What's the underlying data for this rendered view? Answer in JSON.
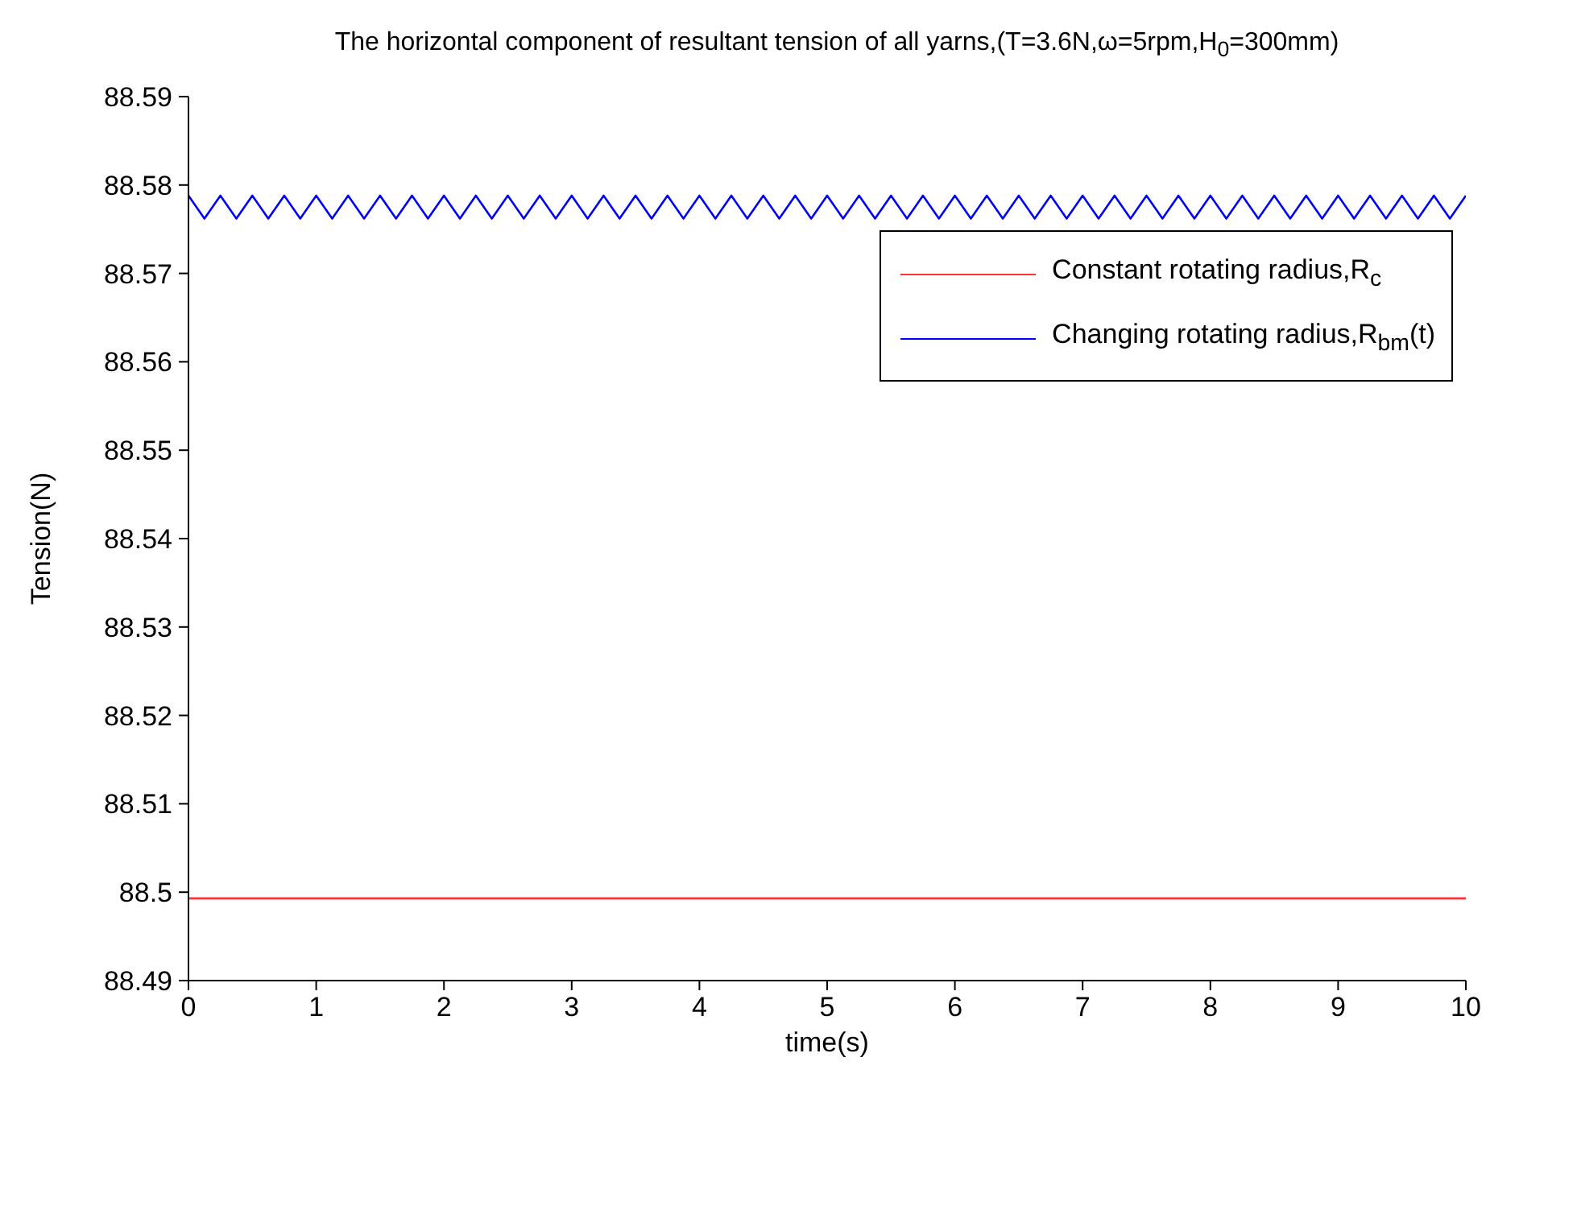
{
  "chart_data": {
    "type": "line",
    "title": "The horizontal component of resultant tension of all yarns,(T=3.6N,ω=5rpm,H$_{0}$=300mm)",
    "xlabel": "time(s)",
    "ylabel": "Tension(N)",
    "xlim": [
      0,
      10
    ],
    "xticks": [
      0,
      1,
      2,
      3,
      4,
      5,
      6,
      7,
      8,
      9,
      10
    ],
    "ylim": [
      88.49,
      88.59
    ],
    "yticks": [
      88.49,
      88.5,
      88.51,
      88.52,
      88.53,
      88.54,
      88.55,
      88.56,
      88.57,
      88.58,
      88.59
    ],
    "grid": false,
    "legend": "top right",
    "marker": "none",
    "line_style": "solid",
    "series": [
      {
        "name": "Constant rotating radius,R$_{c}$",
        "color": "#ff3333",
        "x": [
          0,
          10
        ],
        "values": [
          88.4993,
          88.4993
        ]
      },
      {
        "name": "Changing rotating radius,R$_{bm}$(t)",
        "color": "#0000ff",
        "x": [
          0,
          0.125,
          0.25,
          0.375,
          0.5,
          0.625,
          0.75,
          0.875,
          1,
          1.125,
          1.25,
          1.375,
          1.5,
          1.625,
          1.75,
          1.875,
          2,
          2.125,
          2.25,
          2.375,
          2.5,
          2.625,
          2.75,
          2.875,
          3,
          3.125,
          3.25,
          3.375,
          3.5,
          3.625,
          3.75,
          3.875,
          4,
          4.125,
          4.25,
          4.375,
          4.5,
          4.625,
          4.75,
          4.875,
          5,
          5.125,
          5.25,
          5.375,
          5.5,
          5.625,
          5.75,
          5.875,
          6,
          6.125,
          6.25,
          6.375,
          6.5,
          6.625,
          6.75,
          6.875,
          7,
          7.125,
          7.25,
          7.375,
          7.5,
          7.625,
          7.75,
          7.875,
          8,
          8.125,
          8.25,
          8.375,
          8.5,
          8.625,
          8.75,
          8.875,
          9,
          9.125,
          9.25,
          9.375,
          9.5,
          9.625,
          9.75,
          9.875,
          10
        ],
        "values": [
          88.5788,
          88.5762,
          88.5788,
          88.5762,
          88.5788,
          88.5762,
          88.5788,
          88.5762,
          88.5788,
          88.5762,
          88.5788,
          88.5762,
          88.5788,
          88.5762,
          88.5788,
          88.5762,
          88.5788,
          88.5762,
          88.5788,
          88.5762,
          88.5788,
          88.5762,
          88.5788,
          88.5762,
          88.5788,
          88.5762,
          88.5788,
          88.5762,
          88.5788,
          88.5762,
          88.5788,
          88.5762,
          88.5788,
          88.5762,
          88.5788,
          88.5762,
          88.5788,
          88.5762,
          88.5788,
          88.5762,
          88.5788,
          88.5762,
          88.5788,
          88.5762,
          88.5788,
          88.5762,
          88.5788,
          88.5762,
          88.5788,
          88.5762,
          88.5788,
          88.5762,
          88.5788,
          88.5762,
          88.5788,
          88.5762,
          88.5788,
          88.5762,
          88.5788,
          88.5762,
          88.5788,
          88.5762,
          88.5788,
          88.5762,
          88.5788,
          88.5762,
          88.5788,
          88.5762,
          88.5788,
          88.5762,
          88.5788,
          88.5762,
          88.5788,
          88.5762,
          88.5788,
          88.5762,
          88.5788,
          88.5762,
          88.5788,
          88.5762,
          88.5788
        ]
      }
    ]
  }
}
